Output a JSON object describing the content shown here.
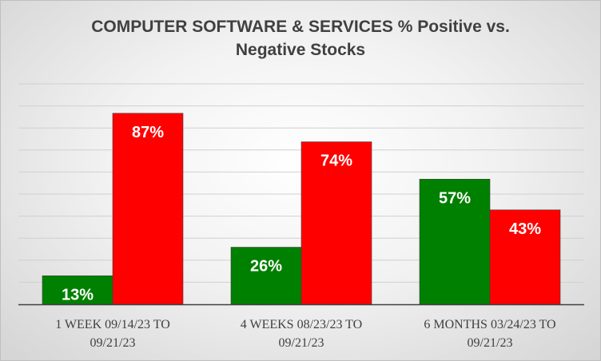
{
  "chart_data": {
    "type": "bar",
    "title_lines": [
      "COMPUTER SOFTWARE & SERVICES % Positive vs.",
      "Negative Stocks"
    ],
    "categories": [
      [
        "1 WEEK 09/14/23 TO",
        "09/21/23"
      ],
      [
        "4 WEEKS 08/23/23 TO",
        "09/21/23"
      ],
      [
        "6 MONTHS 03/24/23 TO",
        "09/21/23"
      ]
    ],
    "series": [
      {
        "name": "Positive",
        "color": "#008000",
        "values": [
          13,
          26,
          57
        ],
        "labels": [
          "13%",
          "26%",
          "57%"
        ]
      },
      {
        "name": "Negative",
        "color": "#ff0000",
        "values": [
          87,
          74,
          43
        ],
        "labels": [
          "87%",
          "74%",
          "43%"
        ]
      }
    ],
    "ylim": [
      0,
      100
    ],
    "grid": true,
    "legend": "none",
    "xlabel": "",
    "ylabel": ""
  }
}
